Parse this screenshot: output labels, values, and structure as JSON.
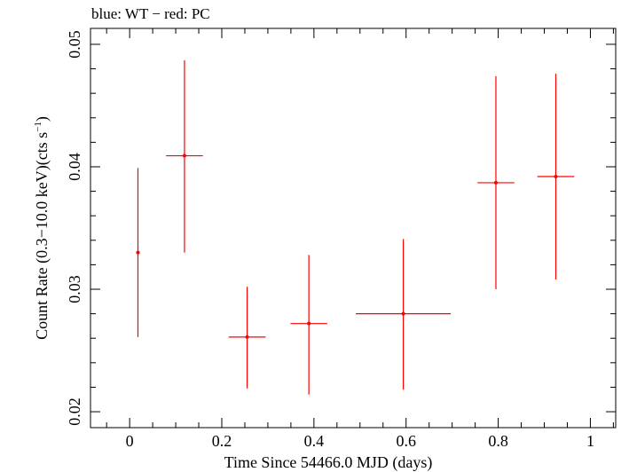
{
  "chart_data": {
    "type": "scatter",
    "title": "blue: WT − red: PC",
    "xlabel": "Time Since 54466.0 MJD (days)",
    "ylabel_main": "Count Rate (0.3−10.0 keV)(cts s",
    "ylabel_sup": "−1",
    "ylabel_end": ")",
    "xlim": [
      -0.085,
      1.055
    ],
    "ylim": [
      0.0187,
      0.0513
    ],
    "x_ticks": [
      0,
      0.2,
      0.4,
      0.6,
      0.8,
      1
    ],
    "x_tick_labels": [
      "0",
      "0.2",
      "0.4",
      "0.6",
      "0.8",
      "1"
    ],
    "y_ticks": [
      0.02,
      0.03,
      0.04,
      0.05
    ],
    "y_tick_labels": [
      "0.02",
      "0.03",
      "0.04",
      "0.05"
    ],
    "grid": false,
    "series": [
      {
        "color": "#ff0000",
        "points": [
          {
            "x": 0.018,
            "y": 0.033,
            "xerr": 0.004,
            "ylo": 0.0261,
            "yhi": 0.0399
          },
          {
            "x": 0.119,
            "y": 0.0409,
            "xerr": 0.04,
            "ylo": 0.033,
            "yhi": 0.0487
          },
          {
            "x": 0.255,
            "y": 0.0261,
            "xerr": 0.04,
            "ylo": 0.0219,
            "yhi": 0.0302
          },
          {
            "x": 0.389,
            "y": 0.0272,
            "xerr": 0.04,
            "ylo": 0.0214,
            "yhi": 0.0328
          },
          {
            "x": 0.594,
            "y": 0.028,
            "xerr": 0.103,
            "ylo": 0.0218,
            "yhi": 0.0341
          },
          {
            "x": 0.795,
            "y": 0.0387,
            "xerr": 0.04,
            "ylo": 0.03,
            "yhi": 0.0474
          },
          {
            "x": 0.925,
            "y": 0.0392,
            "xerr": 0.04,
            "ylo": 0.0308,
            "yhi": 0.0476
          }
        ]
      }
    ]
  }
}
